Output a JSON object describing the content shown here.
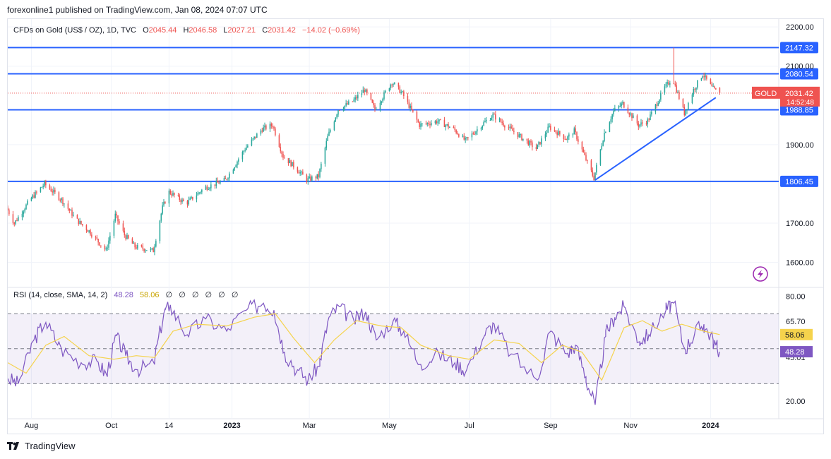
{
  "header": {
    "publisher_line": "forexonline1 published on TradingView.com, Jan 08, 2024 07:07 UTC"
  },
  "footer": {
    "brand": "TradingView"
  },
  "legend": {
    "symbol": "CFDs on Gold (US$ / OZ), 1D, TVC",
    "open_label": "O",
    "open": "2045.44",
    "high_label": "H",
    "high": "2046.58",
    "low_label": "L",
    "low": "2027.21",
    "close_label": "C",
    "close": "2031.42",
    "change": "−14.02 (−0.69%)"
  },
  "rsi_legend": {
    "title": "RSI (14, close, SMA, 14, 2)",
    "rsi": "48.28",
    "sma": "58.06",
    "empty_values": [
      "∅",
      "∅",
      "∅",
      "∅",
      "∅",
      "∅"
    ]
  },
  "price_tag": {
    "symbol": "GOLD",
    "price": "2031.42",
    "countdown": "14:52:48"
  },
  "colors": {
    "up": "#26a69a",
    "down": "#ef5350",
    "level": "#2962ff",
    "rsi_line": "#7e57c2",
    "rsi_sma": "#f5d34c",
    "resistance_top": "#2962ff"
  },
  "chart_data": [
    {
      "type": "candlestick",
      "price_axis": {
        "ticks": [
          "2200.00",
          "2100.00",
          "1900.00",
          "1700.00",
          "1600.00"
        ],
        "range": [
          1540,
          2220
        ]
      },
      "time_axis": {
        "labels": [
          "Aug",
          "Oct",
          "14",
          "2023",
          "Mar",
          "May",
          "Jul",
          "Sep",
          "Nov",
          "2024"
        ],
        "label_dates": [
          "2022-08-01",
          "2022-10-01",
          "2022-11-14",
          "2023-01-01",
          "2023-03-01",
          "2023-05-01",
          "2023-07-01",
          "2023-09-01",
          "2023-11-01",
          "2024-01-01"
        ],
        "range": [
          "2022-07-14",
          "2024-02-22"
        ]
      },
      "horizontal_levels": [
        {
          "value": 2147.32,
          "label": "2147.32"
        },
        {
          "value": 2080.54,
          "label": "2080.54"
        },
        {
          "value": 1988.85,
          "label": "1988.85"
        },
        {
          "value": 1806.45,
          "label": "1806.45"
        }
      ],
      "trendline": {
        "from": {
          "date": "2023-10-05",
          "value": 1810
        },
        "to": {
          "date": "2024-01-05",
          "value": 2020
        }
      },
      "last_close_line": 2031.42,
      "path": [
        [
          "2022-07-14",
          1740
        ],
        [
          "2022-07-20",
          1700
        ],
        [
          "2022-08-01",
          1760
        ],
        [
          "2022-08-12",
          1800
        ],
        [
          "2022-08-25",
          1760
        ],
        [
          "2022-09-05",
          1710
        ],
        [
          "2022-09-15",
          1680
        ],
        [
          "2022-09-28",
          1630
        ],
        [
          "2022-10-05",
          1720
        ],
        [
          "2022-10-12",
          1670
        ],
        [
          "2022-10-20",
          1640
        ],
        [
          "2022-11-03",
          1630
        ],
        [
          "2022-11-10",
          1740
        ],
        [
          "2022-11-15",
          1780
        ],
        [
          "2022-11-28",
          1750
        ],
        [
          "2022-12-12",
          1790
        ],
        [
          "2022-12-28",
          1810
        ],
        [
          "2023-01-12",
          1890
        ],
        [
          "2023-01-25",
          1940
        ],
        [
          "2023-02-02",
          1950
        ],
        [
          "2023-02-10",
          1870
        ],
        [
          "2023-02-20",
          1840
        ],
        [
          "2023-02-28",
          1810
        ],
        [
          "2023-03-09",
          1820
        ],
        [
          "2023-03-16",
          1920
        ],
        [
          "2023-03-24",
          1990
        ],
        [
          "2023-04-04",
          2010
        ],
        [
          "2023-04-13",
          2040
        ],
        [
          "2023-04-21",
          1990
        ],
        [
          "2023-05-04",
          2060
        ],
        [
          "2023-05-12",
          2030
        ],
        [
          "2023-05-25",
          1950
        ],
        [
          "2023-06-08",
          1960
        ],
        [
          "2023-06-20",
          1940
        ],
        [
          "2023-06-29",
          1910
        ],
        [
          "2023-07-13",
          1955
        ],
        [
          "2023-07-20",
          1975
        ],
        [
          "2023-08-02",
          1940
        ],
        [
          "2023-08-22",
          1890
        ],
        [
          "2023-09-01",
          1945
        ],
        [
          "2023-09-14",
          1915
        ],
        [
          "2023-09-20",
          1935
        ],
        [
          "2023-09-28",
          1870
        ],
        [
          "2023-10-05",
          1815
        ],
        [
          "2023-10-13",
          1930
        ],
        [
          "2023-10-20",
          1985
        ],
        [
          "2023-10-27",
          2005
        ],
        [
          "2023-11-08",
          1950
        ],
        [
          "2023-11-15",
          1960
        ],
        [
          "2023-11-28",
          2045
        ],
        [
          "2023-12-04",
          2070
        ],
        [
          "2023-12-13",
          1980
        ],
        [
          "2023-12-20",
          2040
        ],
        [
          "2023-12-27",
          2080
        ],
        [
          "2024-01-03",
          2045
        ],
        [
          "2024-01-08",
          2031
        ]
      ],
      "last_candle": {
        "open": 2045.44,
        "high": 2046.58,
        "low": 2027.21,
        "close": 2031.42
      },
      "notable_wick": {
        "date": "2023-12-04",
        "high": 2147.32
      }
    },
    {
      "type": "line",
      "name": "RSI",
      "axis_ticks": [
        "80.00",
        "65.70",
        "45.01",
        "20.00"
      ],
      "range": [
        10,
        85
      ],
      "bands": [
        70,
        50,
        30
      ],
      "series": [
        {
          "name": "RSI",
          "points": [
            [
              "2022-07-14",
              33
            ],
            [
              "2022-07-22",
              30
            ],
            [
              "2022-08-03",
              55
            ],
            [
              "2022-08-12",
              65
            ],
            [
              "2022-08-24",
              50
            ],
            [
              "2022-09-08",
              42
            ],
            [
              "2022-09-20",
              43
            ],
            [
              "2022-09-28",
              34
            ],
            [
              "2022-10-05",
              58
            ],
            [
              "2022-10-12",
              46
            ],
            [
              "2022-10-21",
              38
            ],
            [
              "2022-11-03",
              41
            ],
            [
              "2022-11-10",
              70
            ],
            [
              "2022-11-15",
              75
            ],
            [
              "2022-11-28",
              58
            ],
            [
              "2022-12-12",
              67
            ],
            [
              "2022-12-28",
              60
            ],
            [
              "2023-01-12",
              72
            ],
            [
              "2023-01-25",
              76
            ],
            [
              "2023-02-02",
              72
            ],
            [
              "2023-02-10",
              48
            ],
            [
              "2023-02-20",
              38
            ],
            [
              "2023-02-28",
              32
            ],
            [
              "2023-03-09",
              40
            ],
            [
              "2023-03-16",
              68
            ],
            [
              "2023-03-24",
              74
            ],
            [
              "2023-04-04",
              66
            ],
            [
              "2023-04-13",
              71
            ],
            [
              "2023-04-21",
              55
            ],
            [
              "2023-05-04",
              66
            ],
            [
              "2023-05-12",
              60
            ],
            [
              "2023-05-25",
              41
            ],
            [
              "2023-06-08",
              47
            ],
            [
              "2023-06-20",
              42
            ],
            [
              "2023-06-29",
              38
            ],
            [
              "2023-07-13",
              58
            ],
            [
              "2023-07-20",
              64
            ],
            [
              "2023-08-02",
              47
            ],
            [
              "2023-08-22",
              32
            ],
            [
              "2023-09-01",
              60
            ],
            [
              "2023-09-14",
              47
            ],
            [
              "2023-09-20",
              52
            ],
            [
              "2023-09-28",
              34
            ],
            [
              "2023-10-05",
              18
            ],
            [
              "2023-10-13",
              57
            ],
            [
              "2023-10-20",
              68
            ],
            [
              "2023-10-27",
              74
            ],
            [
              "2023-11-08",
              54
            ],
            [
              "2023-11-15",
              58
            ],
            [
              "2023-11-28",
              72
            ],
            [
              "2023-12-04",
              76
            ],
            [
              "2023-12-13",
              49
            ],
            [
              "2023-12-20",
              59
            ],
            [
              "2023-12-27",
              64
            ],
            [
              "2024-01-03",
              55
            ],
            [
              "2024-01-08",
              48.28
            ]
          ]
        },
        {
          "name": "SMA",
          "points": [
            [
              "2022-07-14",
              42
            ],
            [
              "2022-07-28",
              36
            ],
            [
              "2022-08-12",
              52
            ],
            [
              "2022-08-26",
              57
            ],
            [
              "2022-09-14",
              46
            ],
            [
              "2022-10-03",
              44
            ],
            [
              "2022-10-20",
              46
            ],
            [
              "2022-11-03",
              45
            ],
            [
              "2022-11-17",
              60
            ],
            [
              "2022-12-05",
              64
            ],
            [
              "2022-12-28",
              63
            ],
            [
              "2023-01-18",
              68
            ],
            [
              "2023-02-03",
              70
            ],
            [
              "2023-02-17",
              56
            ],
            [
              "2023-03-05",
              42
            ],
            [
              "2023-03-20",
              55
            ],
            [
              "2023-04-06",
              66
            ],
            [
              "2023-04-25",
              63
            ],
            [
              "2023-05-10",
              62
            ],
            [
              "2023-05-25",
              52
            ],
            [
              "2023-06-15",
              46
            ],
            [
              "2023-07-01",
              44
            ],
            [
              "2023-07-20",
              55
            ],
            [
              "2023-08-08",
              53
            ],
            [
              "2023-08-25",
              42
            ],
            [
              "2023-09-10",
              52
            ],
            [
              "2023-09-25",
              48
            ],
            [
              "2023-10-10",
              32
            ],
            [
              "2023-10-27",
              62
            ],
            [
              "2023-11-10",
              66
            ],
            [
              "2023-11-25",
              60
            ],
            [
              "2023-12-10",
              64
            ],
            [
              "2023-12-27",
              60
            ],
            [
              "2024-01-08",
              58.06
            ]
          ]
        }
      ]
    }
  ]
}
